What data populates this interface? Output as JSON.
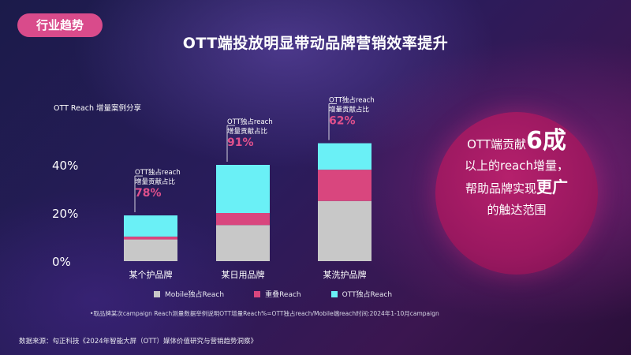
{
  "header": {
    "tag": "行业趋势",
    "title": "OTT端投放明显带动品牌营销效率提升"
  },
  "chart_data": {
    "type": "bar",
    "stacked": true,
    "subtitle": "OTT Reach 增量案例分享",
    "categories": [
      "某个护品牌",
      "某日用品牌",
      "某洗护品牌"
    ],
    "ylim": [
      0,
      50
    ],
    "yticks": [
      {
        "value": 0,
        "label": "0%"
      },
      {
        "value": 20,
        "label": "20%"
      },
      {
        "value": 40,
        "label": "40%"
      }
    ],
    "series": [
      {
        "name": "Mobile独占Reach",
        "color": "#c8c8c8",
        "values": [
          9,
          15,
          25
        ]
      },
      {
        "name": "重叠Reach",
        "color": "#d9467e",
        "values": [
          1.2,
          5,
          13
        ]
      },
      {
        "name": "OTT独占Reach",
        "color": "#6af0f6",
        "values": [
          8.8,
          20,
          11
        ]
      }
    ],
    "annotations": [
      {
        "line1": "OTT独占reach",
        "line2": "增量贡献占比",
        "value": "78%"
      },
      {
        "line1": "OTT独占reach",
        "line2": "增量贡献占比",
        "value": "91%"
      },
      {
        "line1": "OTT独占reach",
        "line2": "增量贡献占比",
        "value": "62%"
      }
    ],
    "grid": false,
    "legend_position": "bottom"
  },
  "callout": {
    "line1_pre": "OTT端贡献",
    "line1_big": "6成",
    "line2": "以上的reach增量，",
    "line3_pre": "帮助品牌实现",
    "line3_big": "更广",
    "line4": "的触达范围"
  },
  "footnote": "•取品牌某次campaign Reach测量数据举例说明OTT增量Reach%=OTT独占reach/Mobile端reach时间:2024年1-10月campaign",
  "source": "数据来源：勾正科技《2024年智能大屏（OTT）媒体价值研究与营销趋势洞察》",
  "colors": {
    "accent": "#d94b8b",
    "pct_label": "#e0508c"
  }
}
